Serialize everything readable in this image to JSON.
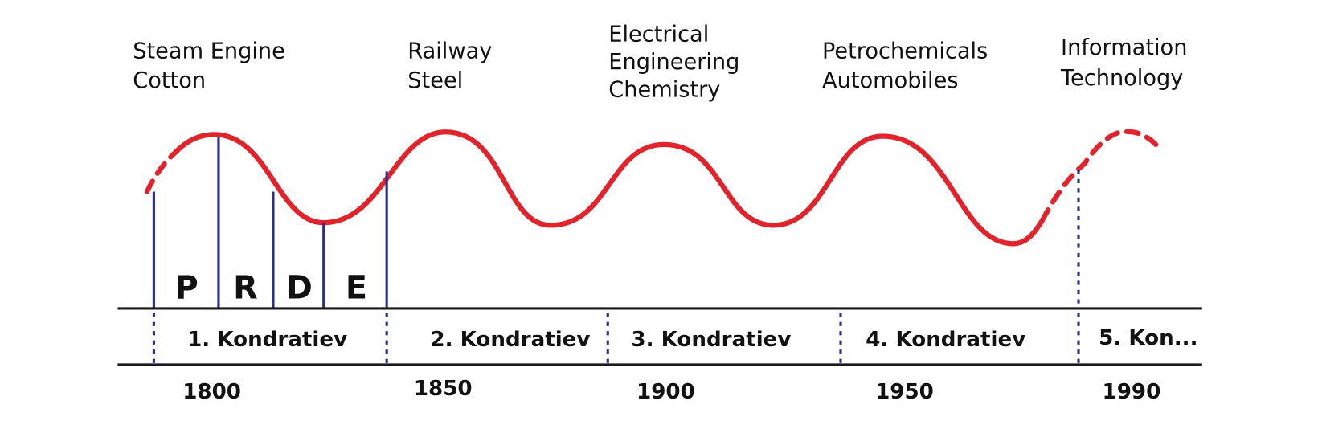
{
  "innovations": [
    [
      "Steam Engine",
      "Cotton"
    ],
    [
      "Railway",
      "Steel"
    ],
    [
      "Electrical",
      "Engineering",
      "Chemistry"
    ],
    [
      "Petrochemicals",
      "Automobiles"
    ],
    [
      "Information",
      "Technology"
    ]
  ],
  "phases": [
    "P",
    "R",
    "D",
    "E"
  ],
  "waves": [
    "1. Kondratiev",
    "2. Kondratiev",
    "3. Kondratiev",
    "4. Kondratiev",
    "5. Kon..."
  ],
  "years": [
    "1800",
    "1850",
    "1900",
    "1950",
    "1990"
  ]
}
